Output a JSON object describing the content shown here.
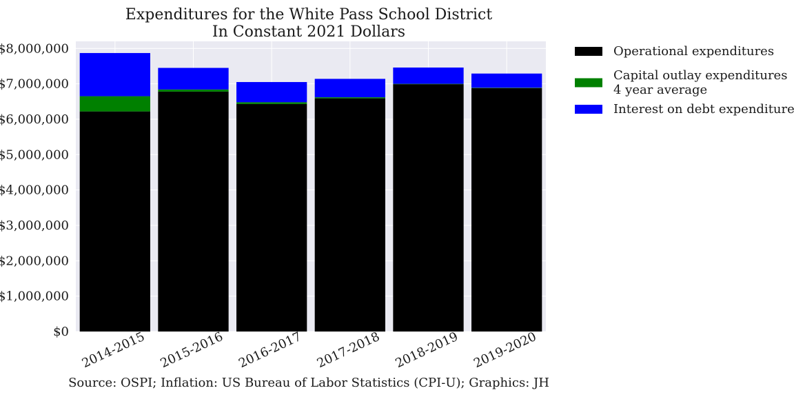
{
  "chart_data": {
    "type": "bar",
    "stacked": true,
    "title": "Expenditures for the White Pass School District",
    "subtitle": "In Constant 2021 Dollars",
    "xlabel": "",
    "ylabel": "",
    "categories": [
      "2014-2015",
      "2015-2016",
      "2016-2017",
      "2017-2018",
      "2018-2019",
      "2019-2020"
    ],
    "series": [
      {
        "name": "Operational expenditures",
        "color": "#000000",
        "values": [
          6220000,
          6780000,
          6430000,
          6590000,
          6990000,
          6880000
        ]
      },
      {
        "name": "Capital outlay expenditures\n4 year average",
        "color": "#008000",
        "values": [
          430000,
          60000,
          50000,
          30000,
          10000,
          10000
        ]
      },
      {
        "name": "Interest on debt expenditures",
        "color": "#0000ff",
        "values": [
          1220000,
          610000,
          570000,
          520000,
          460000,
          400000
        ]
      }
    ],
    "ylim": [
      0,
      8200000
    ],
    "yticks": [
      0,
      1000000,
      2000000,
      3000000,
      4000000,
      5000000,
      6000000,
      7000000,
      8000000
    ],
    "ytick_labels": [
      "$0",
      "$1,000,000",
      "$2,000,000",
      "$3,000,000",
      "$4,000,000",
      "$5,000,000",
      "$6,000,000",
      "$7,000,000",
      "$8,000,000"
    ],
    "grid": true,
    "legend_position": "outside-right",
    "background": "#eaeaf2"
  },
  "source_note": "Source: OSPI; Inflation: US Bureau of Labor Statistics (CPI-U); Graphics: JH"
}
